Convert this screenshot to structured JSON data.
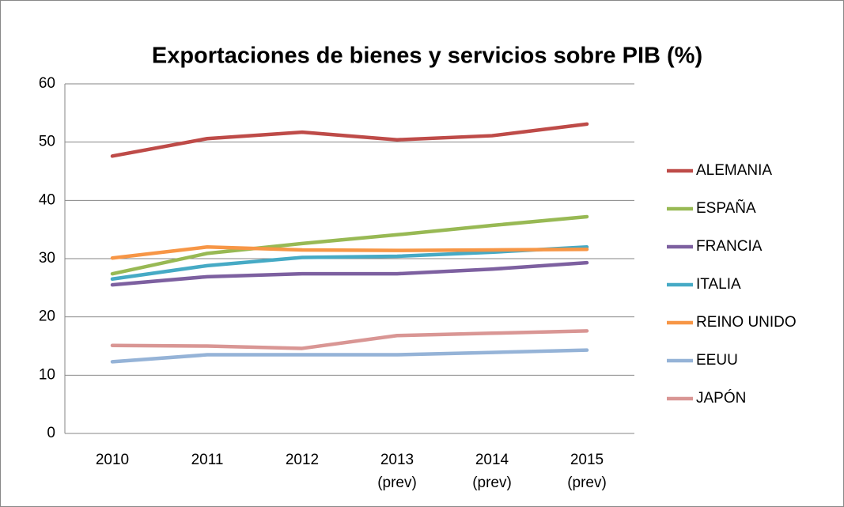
{
  "chart_data": {
    "type": "line",
    "title": "Exportaciones de bienes y servicios sobre PIB (%)",
    "categories": [
      "2010",
      "2011",
      "2012",
      "2013 (prev)",
      "2014 (prev)",
      "2015 (prev)"
    ],
    "series": [
      {
        "name": "ALEMANIA",
        "color": "#be4b48",
        "values": [
          47.6,
          50.6,
          51.7,
          50.4,
          51.1,
          53.1
        ]
      },
      {
        "name": "ESPAÑA",
        "color": "#98b954",
        "values": [
          27.4,
          30.9,
          32.6,
          34.1,
          35.7,
          37.2
        ]
      },
      {
        "name": "FRANCIA",
        "color": "#7d60a0",
        "values": [
          25.5,
          26.9,
          27.4,
          27.4,
          28.2,
          29.3
        ]
      },
      {
        "name": "ITALIA",
        "color": "#46aac5",
        "values": [
          26.5,
          28.8,
          30.2,
          30.4,
          31.1,
          32.0
        ]
      },
      {
        "name": "REINO UNIDO",
        "color": "#f79646",
        "values": [
          30.1,
          32.0,
          31.5,
          31.4,
          31.5,
          31.6
        ]
      },
      {
        "name": "EEUU",
        "color": "#95b3d7",
        "values": [
          12.3,
          13.5,
          13.5,
          13.5,
          13.9,
          14.3
        ]
      },
      {
        "name": "JAPÓN",
        "color": "#d99694",
        "values": [
          15.1,
          15.0,
          14.6,
          16.8,
          17.2,
          17.6
        ]
      }
    ],
    "ylim": [
      0,
      60
    ],
    "yticks": [
      0,
      10,
      20,
      30,
      40,
      50,
      60
    ],
    "grid": true,
    "legend": "right"
  }
}
